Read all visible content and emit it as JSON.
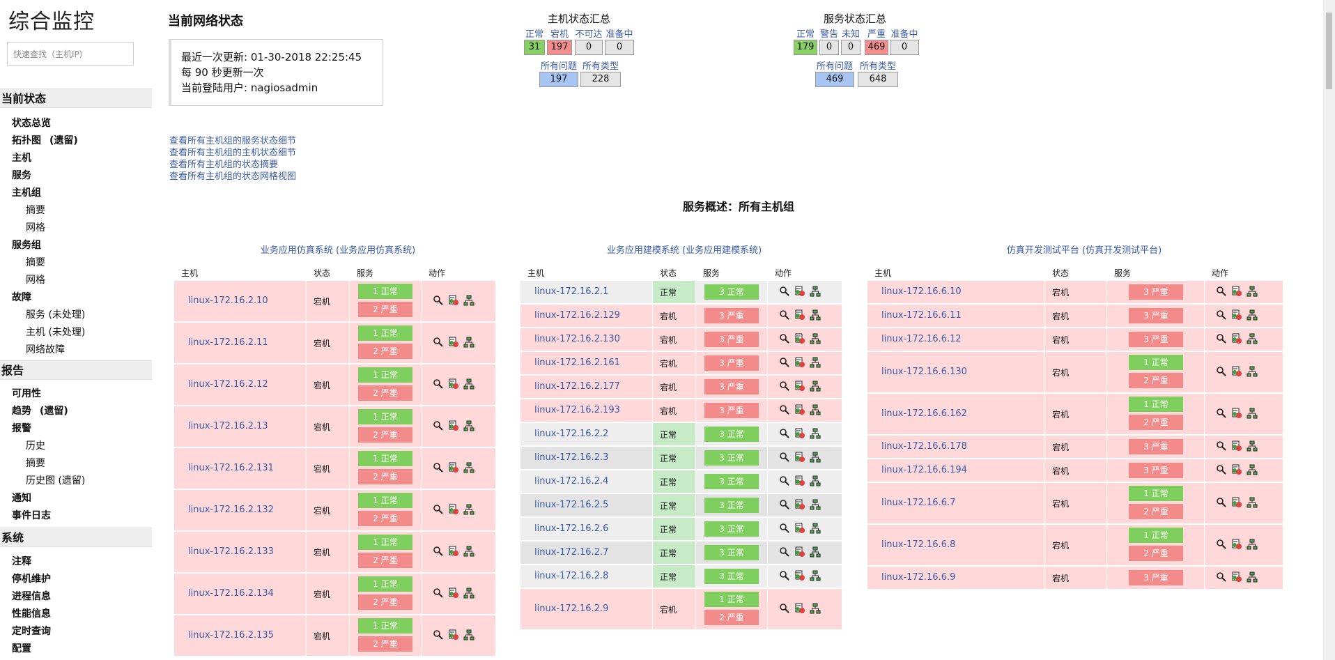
{
  "sidebar": {
    "brand": "综合监控",
    "search_placeholder": "快速查找（主机IP）",
    "sections": [
      {
        "title": "当前状态",
        "items": [
          {
            "label": "状态总览",
            "level": 1
          },
          {
            "label": "拓扑图",
            "tag": "(遗留)",
            "level": 1
          },
          {
            "label": "主机",
            "level": 1
          },
          {
            "label": "服务",
            "level": 1
          },
          {
            "label": "主机组",
            "level": 1
          },
          {
            "label": "摘要",
            "level": 2
          },
          {
            "label": "网格",
            "level": 2
          },
          {
            "label": "服务组",
            "level": 1
          },
          {
            "label": "摘要",
            "level": 2
          },
          {
            "label": "网格",
            "level": 2
          },
          {
            "label": "故障",
            "level": 1
          },
          {
            "label": "服务 (未处理)",
            "level": 2
          },
          {
            "label": "主机 (未处理)",
            "level": 2
          },
          {
            "label": "网络故障",
            "level": 2
          }
        ]
      },
      {
        "title": "报告",
        "items": [
          {
            "label": "可用性",
            "level": 1
          },
          {
            "label": "趋势",
            "tag": "(遗留)",
            "level": 1
          },
          {
            "label": "报警",
            "level": 1
          },
          {
            "label": "历史",
            "level": 2
          },
          {
            "label": "摘要",
            "level": 2
          },
          {
            "label": "历史图 (遗留)",
            "level": 2
          },
          {
            "label": "通知",
            "level": 1
          },
          {
            "label": "事件日志",
            "level": 1
          }
        ]
      },
      {
        "title": "系统",
        "items": [
          {
            "label": "注释",
            "level": 1
          },
          {
            "label": "停机维护",
            "level": 1
          },
          {
            "label": "进程信息",
            "level": 1
          },
          {
            "label": "性能信息",
            "level": 1
          },
          {
            "label": "定时查询",
            "level": 1
          },
          {
            "label": "配置",
            "level": 1
          }
        ]
      }
    ]
  },
  "header": {
    "title": "当前网络状态",
    "last_update": "最近一次更新:  01-30-2018 22:25:45",
    "refresh": "每 90 秒更新一次",
    "user": "当前登陆用户:  nagiosadmin"
  },
  "links": [
    "查看所有主机组的服务状态细节",
    "查看所有主机组的主机状态细节",
    "查看所有主机组的状态摘要",
    "查看所有主机组的状态网格视图"
  ],
  "host_summary": {
    "title": "主机状态汇总",
    "labels": [
      "正常",
      "宕机",
      "不可达",
      "准备中"
    ],
    "values": [
      "31",
      "197",
      "0",
      "0"
    ],
    "labels2": [
      "所有问题",
      "所有类型"
    ],
    "values2": [
      "197",
      "228"
    ]
  },
  "service_summary": {
    "title": "服务状态汇总",
    "labels": [
      "正常",
      "警告",
      "未知",
      "严重",
      "准备中"
    ],
    "values": [
      "179",
      "0",
      "0",
      "469",
      "0"
    ],
    "labels2": [
      "所有问题",
      "所有类型"
    ],
    "values2": [
      "469",
      "648"
    ]
  },
  "overview_title": "服务概述：所有主机组",
  "columns": [
    "主机",
    "状态",
    "服务",
    "动作"
  ],
  "groups": [
    {
      "title": "业务应用仿真系统 (业务应用仿真系统)",
      "rows": [
        {
          "host": "linux-172.16.2.10",
          "state": "宕机",
          "ok": "1 正常",
          "crit": "2 严重"
        },
        {
          "host": "linux-172.16.2.11",
          "state": "宕机",
          "ok": "1 正常",
          "crit": "2 严重"
        },
        {
          "host": "linux-172.16.2.12",
          "state": "宕机",
          "ok": "1 正常",
          "crit": "2 严重"
        },
        {
          "host": "linux-172.16.2.13",
          "state": "宕机",
          "ok": "1 正常",
          "crit": "2 严重"
        },
        {
          "host": "linux-172.16.2.131",
          "state": "宕机",
          "ok": "1 正常",
          "crit": "2 严重"
        },
        {
          "host": "linux-172.16.2.132",
          "state": "宕机",
          "ok": "1 正常",
          "crit": "2 严重"
        },
        {
          "host": "linux-172.16.2.133",
          "state": "宕机",
          "ok": "1 正常",
          "crit": "2 严重"
        },
        {
          "host": "linux-172.16.2.134",
          "state": "宕机",
          "ok": "1 正常",
          "crit": "2 严重"
        },
        {
          "host": "linux-172.16.2.135",
          "state": "宕机",
          "ok": "1 正常",
          "crit": "2 严重"
        }
      ]
    },
    {
      "title": "业务应用建模系统 (业务应用建模系统)",
      "rows": [
        {
          "host": "linux-172.16.2.1",
          "state": "正常",
          "ok": "3 正常",
          "crit": ""
        },
        {
          "host": "linux-172.16.2.129",
          "state": "宕机",
          "ok": "",
          "crit": "3 严重"
        },
        {
          "host": "linux-172.16.2.130",
          "state": "宕机",
          "ok": "",
          "crit": "3 严重"
        },
        {
          "host": "linux-172.16.2.161",
          "state": "宕机",
          "ok": "",
          "crit": "3 严重"
        },
        {
          "host": "linux-172.16.2.177",
          "state": "宕机",
          "ok": "",
          "crit": "3 严重"
        },
        {
          "host": "linux-172.16.2.193",
          "state": "宕机",
          "ok": "",
          "crit": "3 严重"
        },
        {
          "host": "linux-172.16.2.2",
          "state": "正常",
          "ok": "3 正常",
          "crit": ""
        },
        {
          "host": "linux-172.16.2.3",
          "state": "正常",
          "ok": "3 正常",
          "crit": ""
        },
        {
          "host": "linux-172.16.2.4",
          "state": "正常",
          "ok": "3 正常",
          "crit": ""
        },
        {
          "host": "linux-172.16.2.5",
          "state": "正常",
          "ok": "3 正常",
          "crit": ""
        },
        {
          "host": "linux-172.16.2.6",
          "state": "正常",
          "ok": "3 正常",
          "crit": ""
        },
        {
          "host": "linux-172.16.2.7",
          "state": "正常",
          "ok": "3 正常",
          "crit": ""
        },
        {
          "host": "linux-172.16.2.8",
          "state": "正常",
          "ok": "3 正常",
          "crit": ""
        },
        {
          "host": "linux-172.16.2.9",
          "state": "宕机",
          "ok": "1 正常",
          "crit": "2 严重"
        }
      ]
    },
    {
      "title": "仿真开发测试平台 (仿真开发测试平台)",
      "rows": [
        {
          "host": "linux-172.16.6.10",
          "state": "宕机",
          "ok": "",
          "crit": "3 严重"
        },
        {
          "host": "linux-172.16.6.11",
          "state": "宕机",
          "ok": "",
          "crit": "3 严重"
        },
        {
          "host": "linux-172.16.6.12",
          "state": "宕机",
          "ok": "",
          "crit": "3 严重"
        },
        {
          "host": "linux-172.16.6.130",
          "state": "宕机",
          "ok": "1 正常",
          "crit": "2 严重"
        },
        {
          "host": "linux-172.16.6.162",
          "state": "宕机",
          "ok": "1 正常",
          "crit": "2 严重"
        },
        {
          "host": "linux-172.16.6.178",
          "state": "宕机",
          "ok": "",
          "crit": "3 严重"
        },
        {
          "host": "linux-172.16.6.194",
          "state": "宕机",
          "ok": "",
          "crit": "3 严重"
        },
        {
          "host": "linux-172.16.6.7",
          "state": "宕机",
          "ok": "1 正常",
          "crit": "2 严重"
        },
        {
          "host": "linux-172.16.6.8",
          "state": "宕机",
          "ok": "1 正常",
          "crit": "2 严重"
        },
        {
          "host": "linux-172.16.6.9",
          "state": "宕机",
          "ok": "",
          "crit": "3 严重"
        }
      ]
    }
  ],
  "icons": [
    "magnifier-icon",
    "host-detail-icon",
    "network-map-icon"
  ],
  "colors": {
    "ok": "#7fcf5e",
    "critical": "#f48b8b",
    "problem_row": "#ffd9d9",
    "link": "#3b5ba8"
  }
}
